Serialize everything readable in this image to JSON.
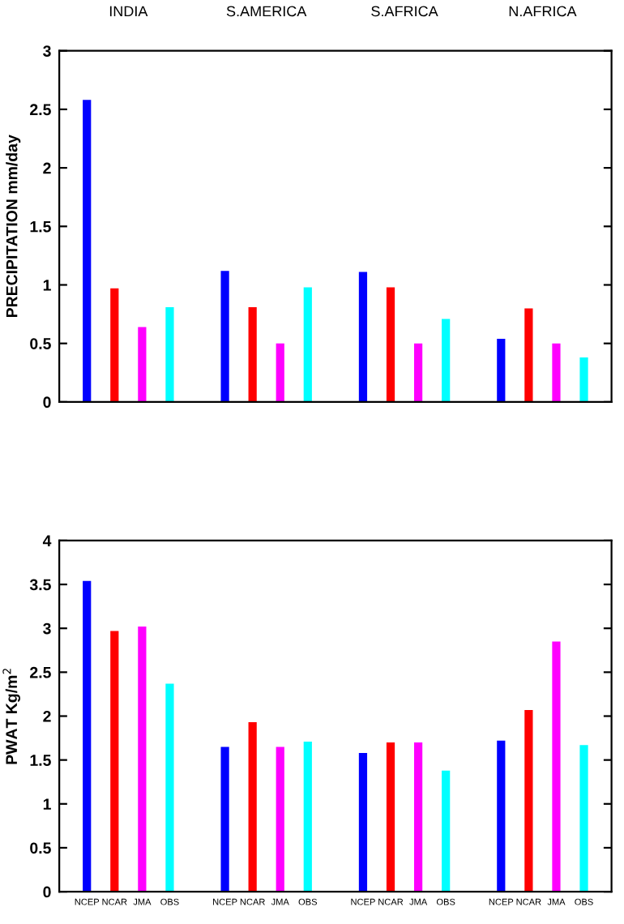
{
  "chart_data": [
    {
      "type": "bar",
      "ylabel": "PRECIPITATION mm/day",
      "categories": [
        "INDIA",
        "S.AMERICA",
        "S.AFRICA",
        "N.AFRICA"
      ],
      "ylim": [
        0,
        3
      ],
      "yticks": [
        0,
        0.5,
        1,
        1.5,
        2,
        2.5,
        3
      ],
      "grid": false,
      "legend": false,
      "series": [
        {
          "color": "#0000ff",
          "values": [
            2.58,
            1.12,
            1.11,
            0.54
          ]
        },
        {
          "color": "#ff0000",
          "values": [
            0.97,
            0.81,
            0.98,
            0.8
          ]
        },
        {
          "color": "#ff00ff",
          "values": [
            0.64,
            0.5,
            0.5,
            0.5
          ]
        },
        {
          "color": "#00ffff",
          "values": [
            0.81,
            0.98,
            0.71,
            0.38
          ]
        }
      ]
    },
    {
      "type": "bar",
      "ylabel": "PWAT Kg/m$^{2}$",
      "categories": [
        null,
        null,
        null,
        null
      ],
      "ylim": [
        0,
        4
      ],
      "yticks": [
        0,
        0.5,
        1,
        1.5,
        2,
        2.5,
        3,
        3.5,
        4
      ],
      "grid": false,
      "legend": false,
      "series": [
        {
          "name": "NCEP",
          "color": "#0000ff",
          "values": [
            3.54,
            1.65,
            1.58,
            1.72
          ]
        },
        {
          "name": "NCAR",
          "color": "#ff0000",
          "values": [
            2.97,
            1.93,
            1.7,
            2.07
          ]
        },
        {
          "name": "JMA",
          "color": "#ff00ff",
          "values": [
            3.02,
            1.65,
            1.7,
            2.85
          ]
        },
        {
          "name": "OBS",
          "color": "#00ffff",
          "values": [
            2.37,
            1.71,
            1.38,
            1.67
          ]
        }
      ]
    }
  ]
}
